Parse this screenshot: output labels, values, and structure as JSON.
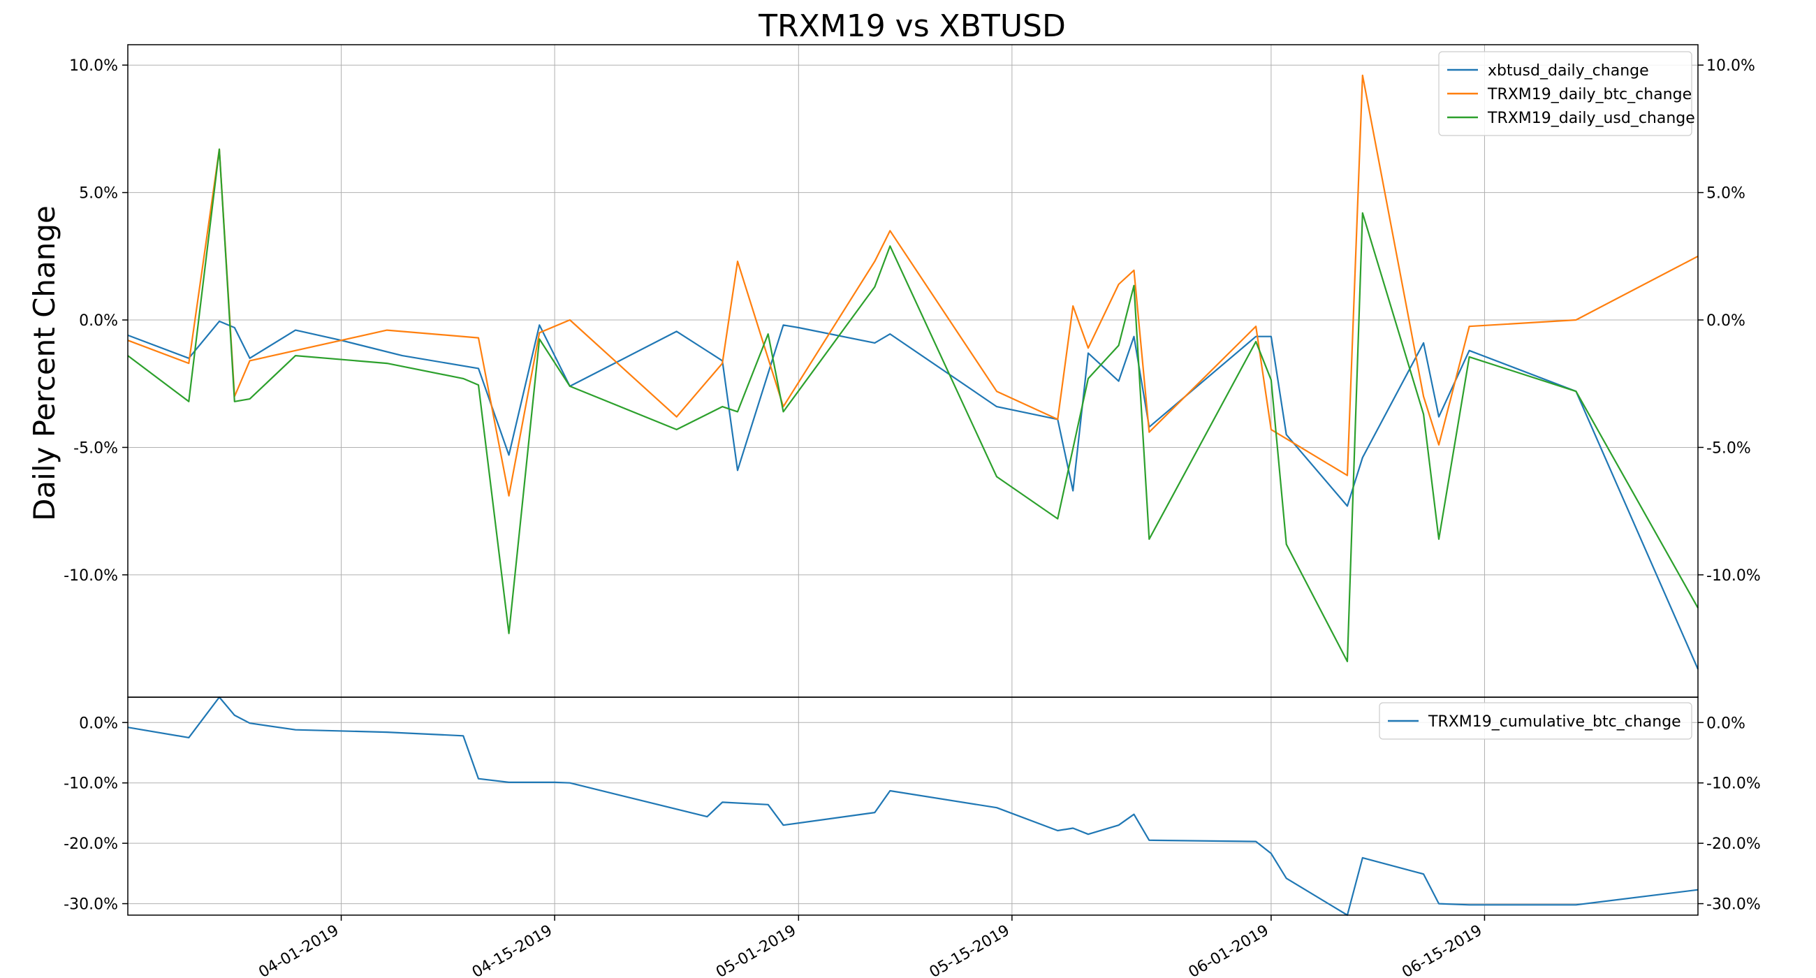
{
  "chart_data": [
    {
      "type": "line",
      "title": "TRXM19 vs XBTUSD",
      "xlabel": "",
      "ylabel": "Daily Percent Change",
      "x_tick_labels": [
        "04-01-2019",
        "04-15-2019",
        "05-01-2019",
        "05-15-2019",
        "06-01-2019",
        "06-15-2019"
      ],
      "y_tick_labels": [
        "-10.0%",
        "-5.0%",
        "0.0%",
        "5.0%",
        "10.0%"
      ],
      "y_tick_values": [
        -10,
        -5,
        0,
        5,
        10
      ],
      "ylim": [
        -14.8,
        10.8
      ],
      "xlim": [
        "2019-03-18",
        "2019-06-29"
      ],
      "grid": true,
      "legend_position": "top-right",
      "series": [
        {
          "name": "xbtusd_daily_change",
          "color": "#1f77b4",
          "x": [
            "2019-03-18",
            "2019-03-22",
            "2019-03-24",
            "2019-03-25",
            "2019-03-26",
            "2019-03-29",
            "2019-04-01",
            "2019-04-05",
            "2019-04-10",
            "2019-04-12",
            "2019-04-14",
            "2019-04-16",
            "2019-04-23",
            "2019-04-26",
            "2019-04-27",
            "2019-04-30",
            "2019-05-01",
            "2019-05-06",
            "2019-05-07",
            "2019-05-14",
            "2019-05-18",
            "2019-05-19",
            "2019-05-20",
            "2019-05-22",
            "2019-05-23",
            "2019-05-24",
            "2019-05-31",
            "2019-06-01",
            "2019-06-02",
            "2019-06-06",
            "2019-06-07",
            "2019-06-11",
            "2019-06-12",
            "2019-06-14",
            "2019-06-21",
            "2019-06-29"
          ],
          "y": [
            -0.6,
            -1.5,
            -0.05,
            -0.3,
            -1.5,
            -0.4,
            -0.8,
            -1.4,
            -1.9,
            -5.3,
            -0.2,
            -2.6,
            -0.45,
            -1.6,
            -5.9,
            -0.2,
            -0.3,
            -0.9,
            -0.55,
            -3.4,
            -3.9,
            -6.7,
            -1.3,
            -2.4,
            -0.65,
            -4.2,
            -0.65,
            -0.65,
            -4.5,
            -7.3,
            -5.4,
            -0.9,
            -3.8,
            -1.2,
            -2.8,
            -13.7
          ]
        },
        {
          "name": "TRXM19_daily_btc_change",
          "color": "#ff7f0e",
          "x": [
            "2019-03-18",
            "2019-03-22",
            "2019-03-24",
            "2019-03-25",
            "2019-03-26",
            "2019-04-04",
            "2019-04-10",
            "2019-04-12",
            "2019-04-14",
            "2019-04-16",
            "2019-04-23",
            "2019-04-26",
            "2019-04-27",
            "2019-04-30",
            "2019-05-06",
            "2019-05-07",
            "2019-05-14",
            "2019-05-18",
            "2019-05-19",
            "2019-05-20",
            "2019-05-22",
            "2019-05-23",
            "2019-05-24",
            "2019-05-31",
            "2019-06-01",
            "2019-06-06",
            "2019-06-07",
            "2019-06-11",
            "2019-06-12",
            "2019-06-14",
            "2019-06-21",
            "2019-06-29"
          ],
          "y": [
            -0.8,
            -1.7,
            6.7,
            -3.0,
            -1.6,
            -0.4,
            -0.7,
            -6.9,
            -0.5,
            0.0,
            -3.8,
            -1.7,
            2.3,
            -3.4,
            2.3,
            3.5,
            -2.8,
            -3.9,
            0.55,
            -1.1,
            1.4,
            1.95,
            -4.4,
            -0.25,
            -4.3,
            -6.1,
            9.6,
            -3.0,
            -4.9,
            -0.25,
            0.0,
            2.5
          ]
        },
        {
          "name": "TRXM19_daily_usd_change",
          "color": "#2ca02c",
          "x": [
            "2019-03-18",
            "2019-03-22",
            "2019-03-24",
            "2019-03-25",
            "2019-03-26",
            "2019-03-29",
            "2019-04-04",
            "2019-04-09",
            "2019-04-10",
            "2019-04-12",
            "2019-04-14",
            "2019-04-16",
            "2019-04-23",
            "2019-04-26",
            "2019-04-27",
            "2019-04-29",
            "2019-04-30",
            "2019-05-06",
            "2019-05-07",
            "2019-05-14",
            "2019-05-18",
            "2019-05-20",
            "2019-05-22",
            "2019-05-23",
            "2019-05-24",
            "2019-05-31",
            "2019-06-01",
            "2019-06-02",
            "2019-06-06",
            "2019-06-07",
            "2019-06-11",
            "2019-06-12",
            "2019-06-14",
            "2019-06-21",
            "2019-06-29"
          ],
          "y": [
            -1.4,
            -3.2,
            6.7,
            -3.2,
            -3.1,
            -1.4,
            -1.7,
            -2.3,
            -2.55,
            -12.3,
            -0.75,
            -2.6,
            -4.3,
            -3.4,
            -3.6,
            -0.55,
            -3.6,
            1.3,
            2.9,
            -6.15,
            -7.8,
            -2.3,
            -1.0,
            1.35,
            -8.6,
            -0.85,
            -2.35,
            -8.8,
            -13.4,
            4.2,
            -3.7,
            -8.6,
            -1.45,
            -2.8,
            -11.3
          ]
        }
      ]
    },
    {
      "type": "line",
      "title": "",
      "xlabel": "",
      "ylabel": "",
      "y_tick_labels": [
        "-30.0%",
        "-20.0%",
        "-10.0%",
        "0.0%"
      ],
      "y_tick_values": [
        -30,
        -20,
        -10,
        0
      ],
      "ylim": [
        -31.9,
        4.2
      ],
      "grid": true,
      "legend_position": "top-right",
      "series": [
        {
          "name": "TRXM19_cumulative_btc_change",
          "color": "#1f77b4",
          "x": [
            "2019-03-18",
            "2019-03-22",
            "2019-03-24",
            "2019-03-25",
            "2019-03-26",
            "2019-03-29",
            "2019-04-04",
            "2019-04-09",
            "2019-04-10",
            "2019-04-12",
            "2019-04-14",
            "2019-04-15",
            "2019-04-16",
            "2019-04-25",
            "2019-04-26",
            "2019-04-29",
            "2019-04-30",
            "2019-05-06",
            "2019-05-07",
            "2019-05-14",
            "2019-05-18",
            "2019-05-19",
            "2019-05-20",
            "2019-05-22",
            "2019-05-23",
            "2019-05-24",
            "2019-05-31",
            "2019-06-01",
            "2019-06-02",
            "2019-06-06",
            "2019-06-07",
            "2019-06-11",
            "2019-06-12",
            "2019-06-14",
            "2019-06-21",
            "2019-06-29"
          ],
          "y": [
            -0.8,
            -2.5,
            4.2,
            1.2,
            -0.1,
            -1.2,
            -1.6,
            -2.2,
            -9.3,
            -9.9,
            -9.9,
            -9.9,
            -10.0,
            -15.6,
            -13.2,
            -13.6,
            -17.0,
            -14.9,
            -11.3,
            -14.1,
            -17.9,
            -17.5,
            -18.5,
            -17.0,
            -15.2,
            -19.5,
            -19.7,
            -21.7,
            -25.8,
            -31.9,
            -22.4,
            -25.1,
            -30.0,
            -30.2,
            -30.2,
            -27.7
          ]
        }
      ]
    }
  ]
}
